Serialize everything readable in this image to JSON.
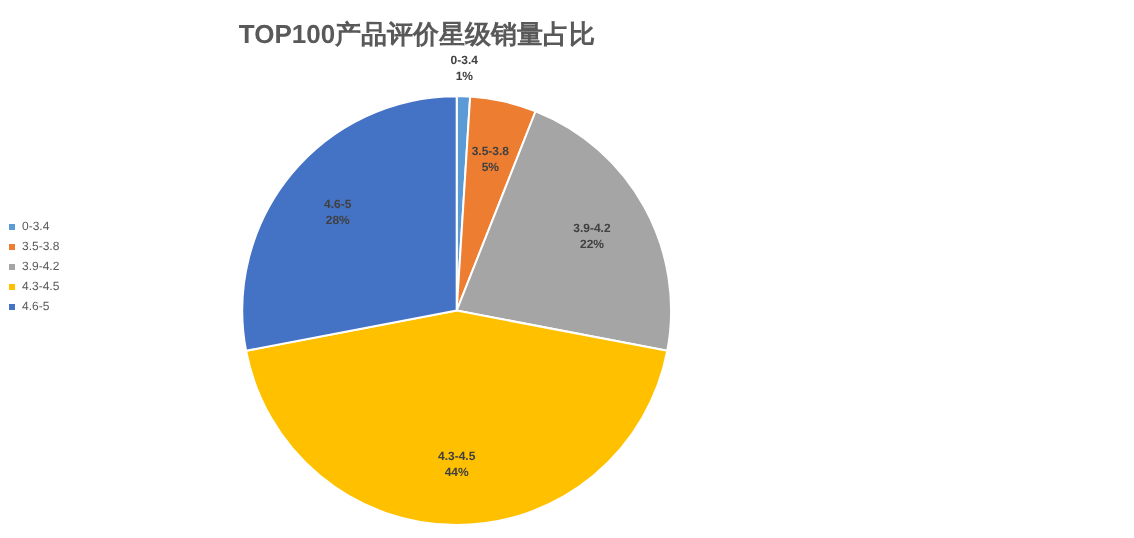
{
  "chart_data": {
    "type": "pie",
    "title": "TOP100产品评价星级销量占比",
    "categories": [
      "0-3.4",
      "3.5-3.8",
      "3.9-4.2",
      "4.3-4.5",
      "4.6-5"
    ],
    "values": [
      1,
      5,
      22,
      44,
      28
    ],
    "value_labels": [
      "1%",
      "5%",
      "22%",
      "44%",
      "28%"
    ],
    "colors": [
      "#5b9bd5",
      "#ed7d31",
      "#a5a5a5",
      "#ffc000",
      "#4472c4"
    ],
    "legend": "left"
  }
}
